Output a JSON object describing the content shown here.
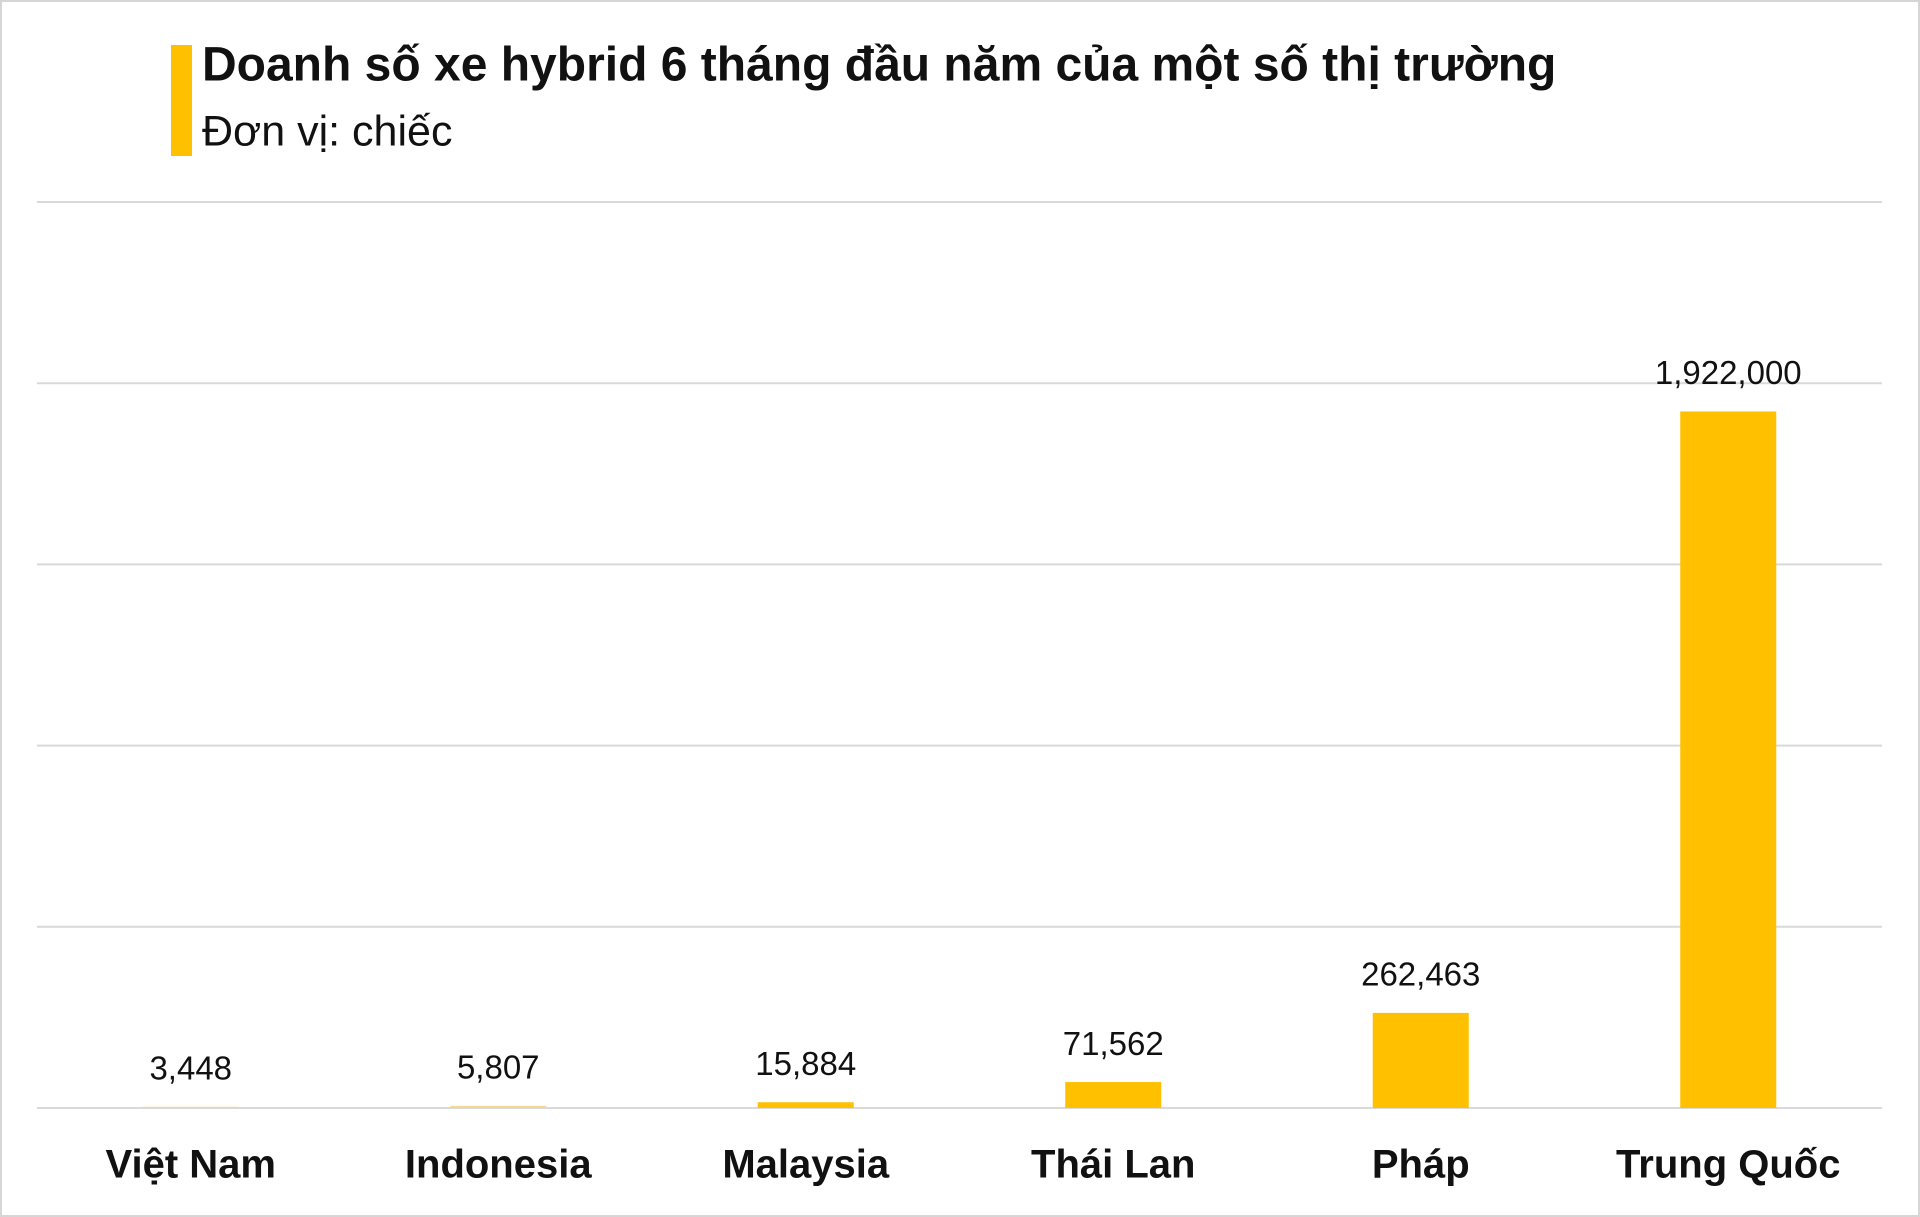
{
  "chart_data": {
    "type": "bar",
    "title": "Doanh số xe hybrid 6 tháng đầu năm của một số thị trường",
    "subtitle": "Đơn vị: chiếc",
    "categories": [
      "Việt Nam",
      "Indonesia",
      "Malaysia",
      "Thái Lan",
      "Pháp",
      "Trung Quốc"
    ],
    "values": [
      3448,
      5807,
      15884,
      71562,
      262463,
      1922000
    ],
    "value_labels": [
      "3,448",
      "5,807",
      "15,884",
      "71,562",
      "262,463",
      "1,922,000"
    ],
    "colors": [
      "#f3d98f",
      "#f3d98f",
      "#ffc000",
      "#ffc000",
      "#ffc000",
      "#ffc000"
    ],
    "ylim": [
      0,
      2500000
    ],
    "yticks": [
      0,
      500000,
      1000000,
      1500000,
      2000000,
      2500000
    ],
    "grid": true
  }
}
